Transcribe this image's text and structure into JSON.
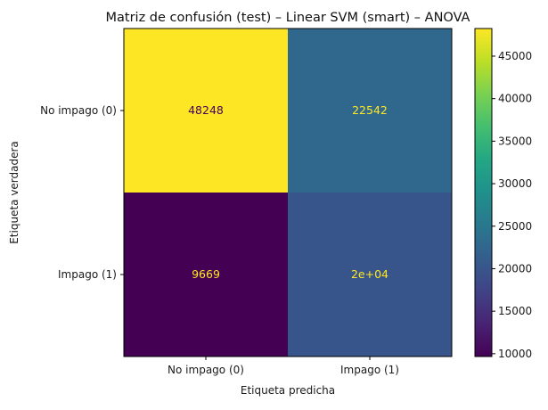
{
  "chart_data": {
    "type": "heatmap",
    "title": "Matriz de confusión (test) – Linear SVM (smart) – ANOVA",
    "xlabel": "Etiqueta predicha",
    "ylabel": "Etiqueta verdadera",
    "x_categories": [
      "No impago (0)",
      "Impago (1)"
    ],
    "y_categories": [
      "No impago (0)",
      "Impago (1)"
    ],
    "values": [
      [
        48248,
        22542
      ],
      [
        9669,
        20000
      ]
    ],
    "cell_labels": [
      [
        "48248",
        "22542"
      ],
      [
        "9669",
        "2e+04"
      ]
    ],
    "colormap": "viridis",
    "colorbar": {
      "range": [
        9669,
        48248
      ],
      "ticks": [
        10000,
        15000,
        20000,
        25000,
        30000,
        35000,
        40000,
        45000
      ],
      "tick_labels": [
        "10000",
        "15000",
        "20000",
        "25000",
        "30000",
        "35000",
        "40000",
        "45000"
      ]
    },
    "grid": false,
    "colors": {
      "text_on_light": "#440154",
      "text_on_dark": "#fde725"
    }
  }
}
